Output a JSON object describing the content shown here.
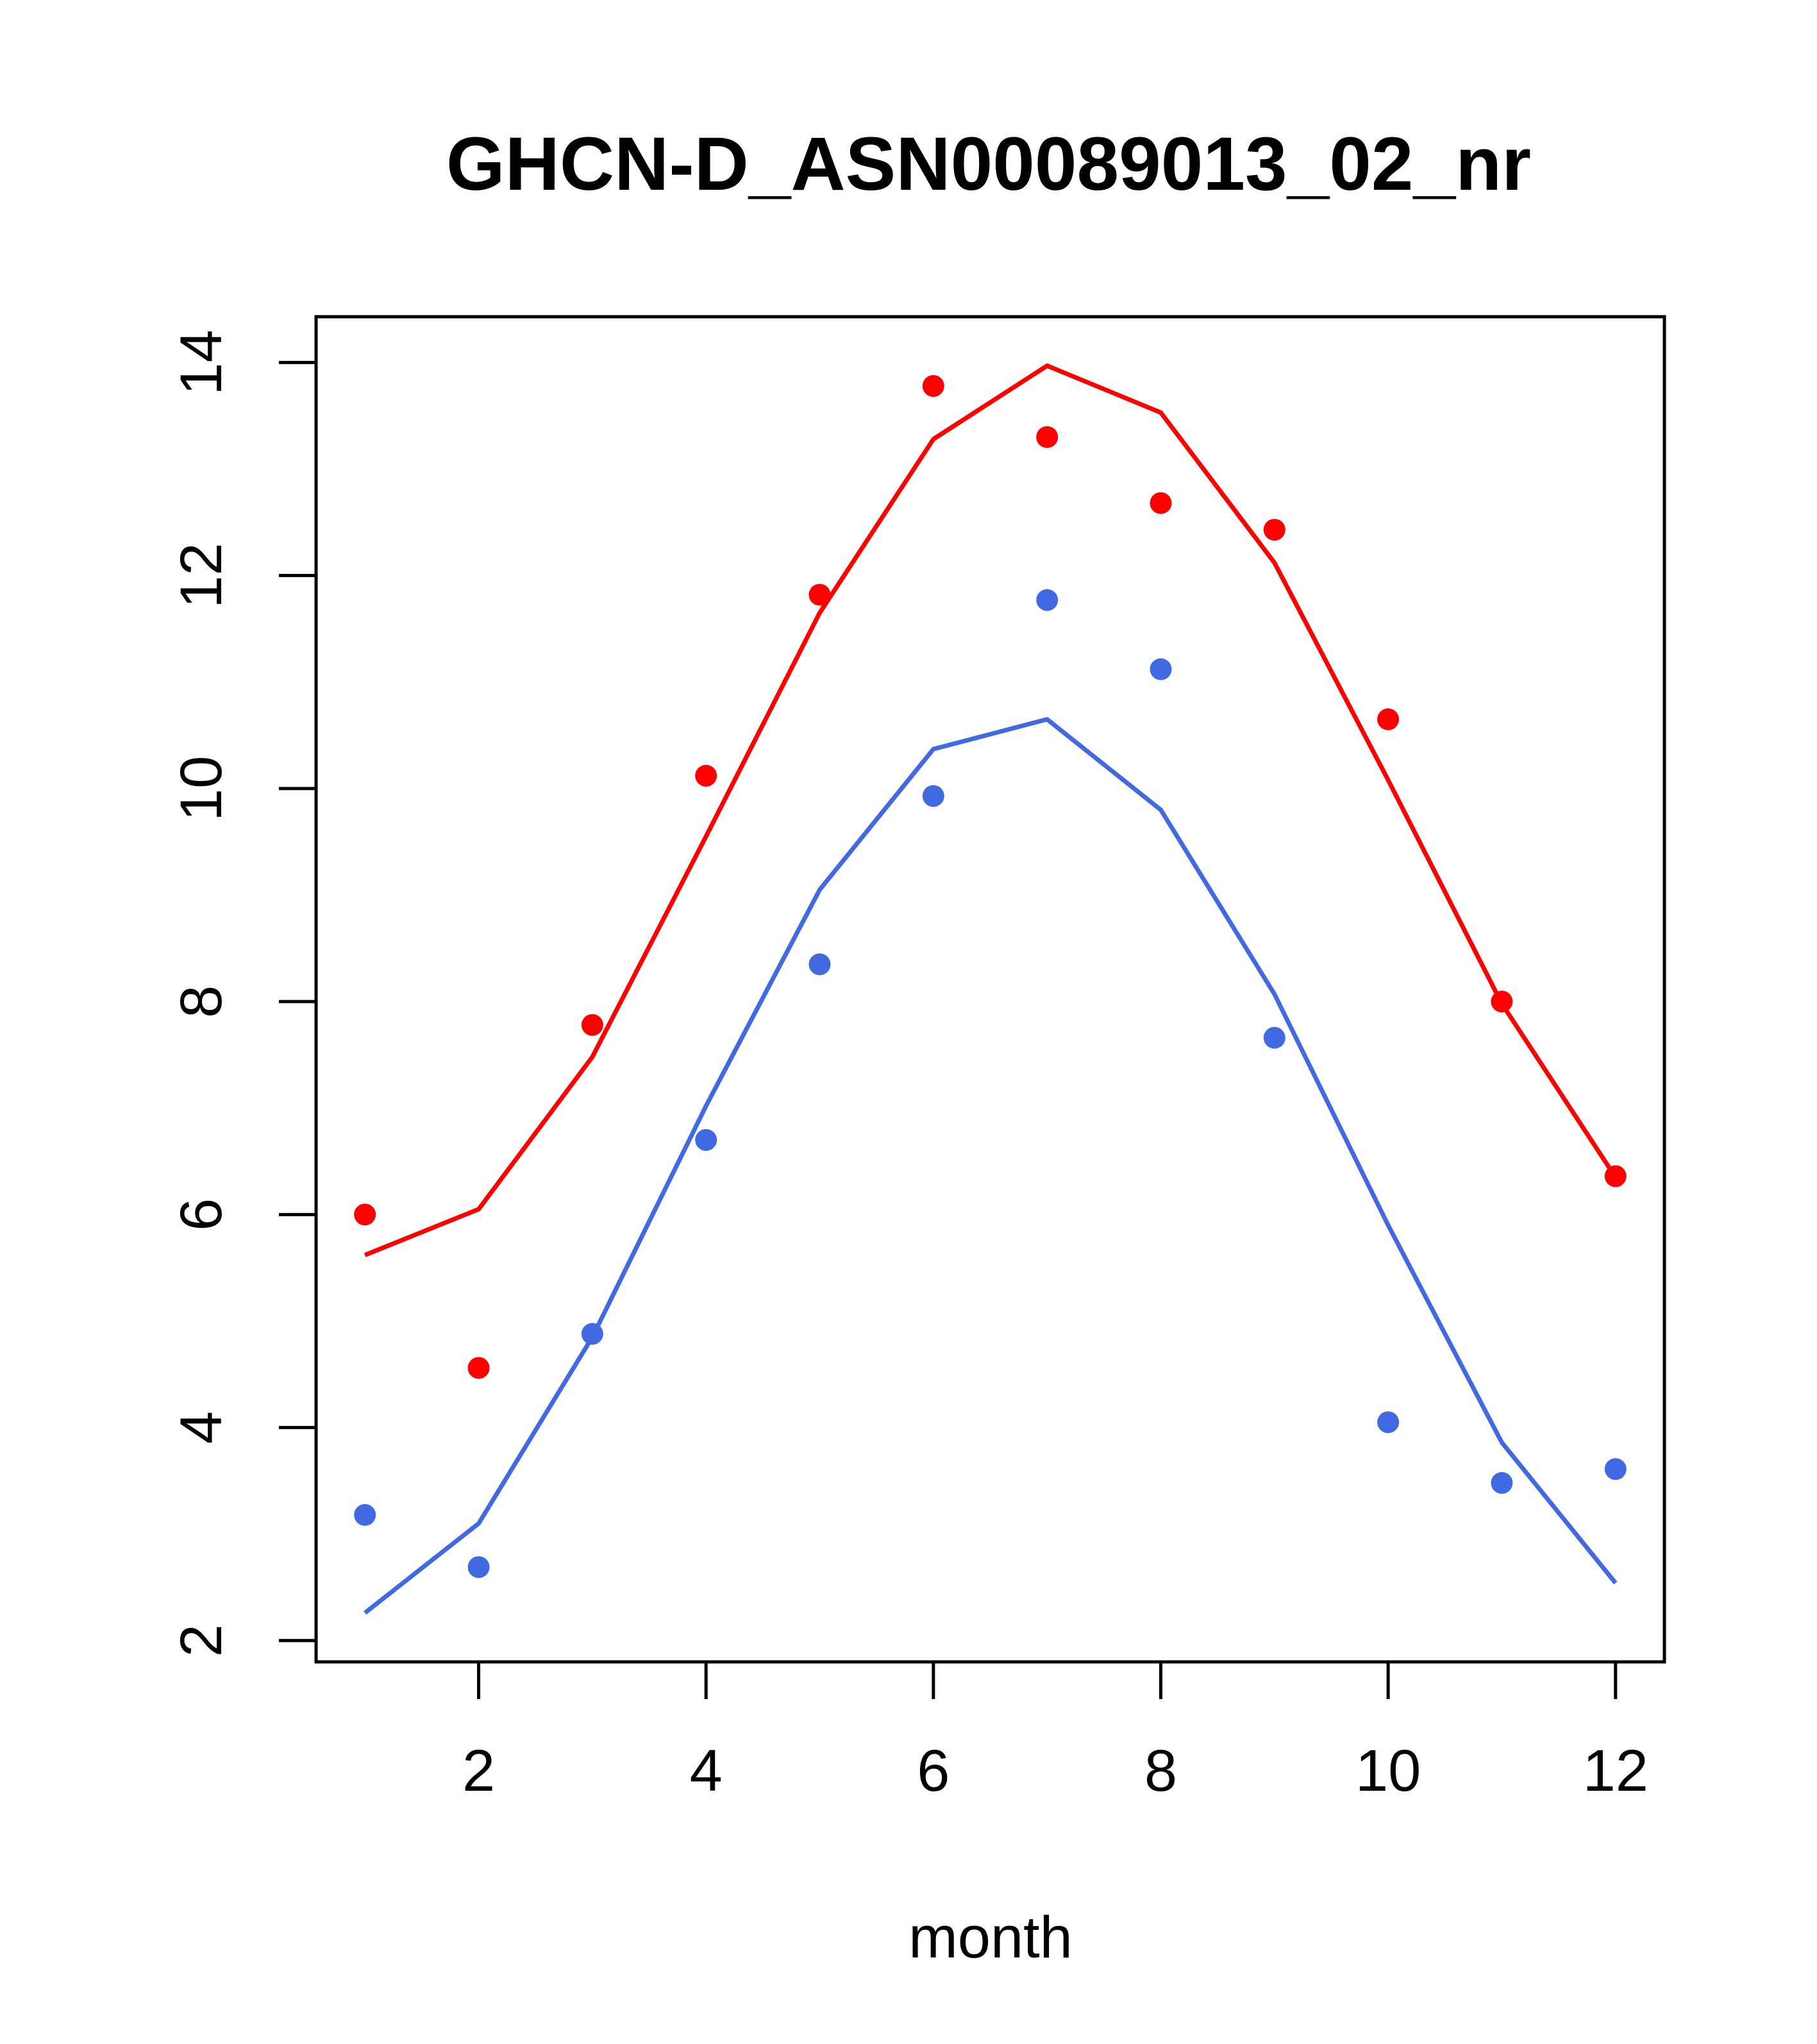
{
  "chart_data": {
    "type": "line",
    "title": "GHCN-D_ASN00089013_02_nr",
    "xlabel": "month",
    "ylabel": "",
    "xlim": [
      0.57,
      12.43
    ],
    "ylim": [
      1.8,
      14.43
    ],
    "x_ticks": [
      2,
      4,
      6,
      8,
      10,
      12
    ],
    "y_ticks": [
      2,
      4,
      6,
      8,
      10,
      12,
      14
    ],
    "grid": false,
    "legend": "none",
    "x": [
      1,
      2,
      3,
      4,
      5,
      6,
      7,
      8,
      9,
      10,
      11,
      12
    ],
    "series": [
      {
        "color": "#ff0000",
        "line": [
          5.62,
          6.05,
          7.48,
          9.55,
          11.65,
          13.28,
          13.97,
          13.53,
          12.12,
          10.08,
          7.98,
          6.35
        ],
        "points": [
          6.0,
          4.56,
          7.78,
          10.12,
          11.82,
          13.78,
          13.3,
          12.68,
          12.43,
          10.65,
          8.0,
          6.36
        ]
      },
      {
        "color": "#4169e1",
        "line": [
          2.26,
          3.1,
          4.85,
          7.02,
          9.05,
          10.37,
          10.65,
          9.8,
          8.07,
          5.9,
          3.86,
          2.54
        ],
        "points": [
          3.18,
          2.69,
          4.88,
          6.7,
          8.35,
          9.93,
          11.77,
          11.12,
          7.66,
          4.05,
          3.48,
          3.61
        ]
      }
    ]
  }
}
